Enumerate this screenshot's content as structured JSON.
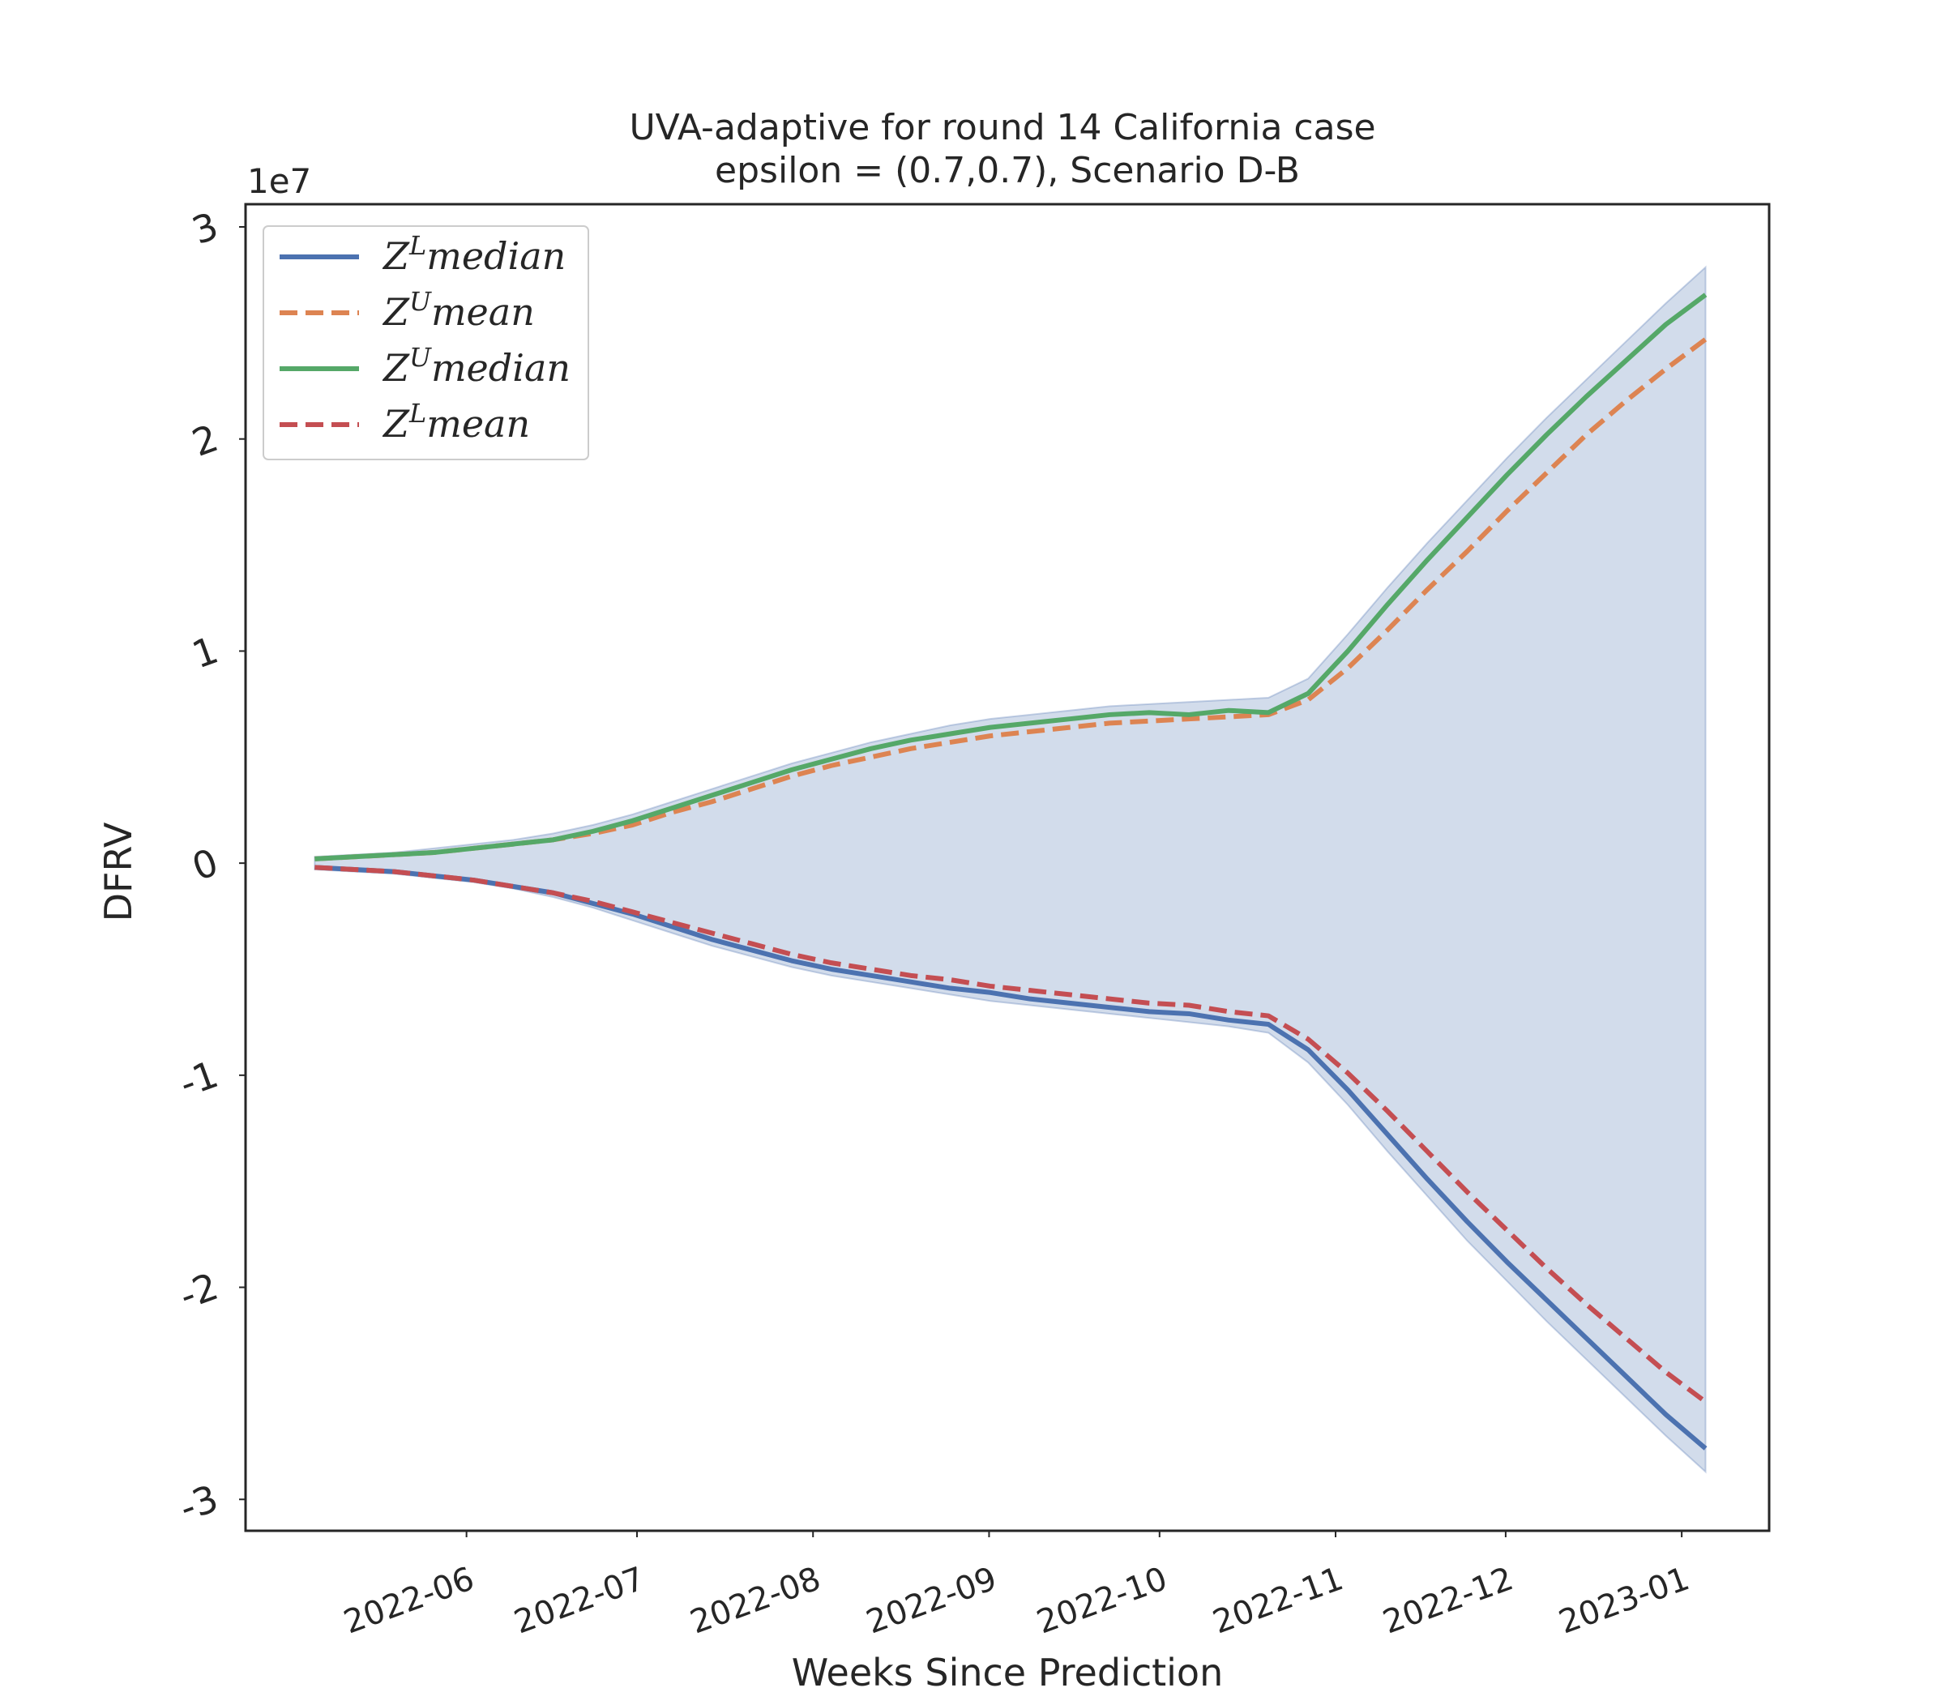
{
  "chart_data": {
    "type": "line",
    "title": "UVA-adaptive for round 14 California  case",
    "subtitle": "epsilon = (0.7,0.7), Scenario D-B",
    "x_label": "Weeks Since Prediction",
    "y_label": "DFRV",
    "y_offset_text": "1e7",
    "x": [
      0,
      1,
      2,
      3,
      4,
      5,
      6,
      7,
      8,
      9,
      10,
      11,
      12,
      13,
      14,
      15,
      16,
      17,
      18,
      19,
      20,
      21,
      22,
      23,
      24,
      25,
      26,
      27,
      28,
      29,
      30,
      31,
      32,
      33,
      34,
      35
    ],
    "xlim": [
      -1.74,
      36.6
    ],
    "xticks": [
      {
        "value": 3.82,
        "label": "2022-06"
      },
      {
        "value": 8.11,
        "label": "2022-07"
      },
      {
        "value": 12.54,
        "label": "2022-08"
      },
      {
        "value": 16.97,
        "label": "2022-09"
      },
      {
        "value": 21.26,
        "label": "2022-10"
      },
      {
        "value": 25.69,
        "label": "2022-11"
      },
      {
        "value": 29.97,
        "label": "2022-12"
      },
      {
        "value": 34.4,
        "label": "2023-01"
      }
    ],
    "ylim": [
      -3.148,
      3.107
    ],
    "yticks": [
      -3,
      -2,
      -1,
      0,
      1,
      2,
      3
    ],
    "grid": false,
    "legend": "upper left",
    "band": {
      "color": "#4c72b0",
      "upper": [
        0.03,
        0.04,
        0.05,
        0.07,
        0.09,
        0.11,
        0.14,
        0.18,
        0.23,
        0.29,
        0.35,
        0.41,
        0.47,
        0.52,
        0.57,
        0.61,
        0.65,
        0.68,
        0.7,
        0.72,
        0.74,
        0.75,
        0.76,
        0.77,
        0.78,
        0.87,
        1.08,
        1.3,
        1.51,
        1.71,
        1.91,
        2.1,
        2.28,
        2.46,
        2.64,
        2.81
      ],
      "lower": [
        -0.03,
        -0.04,
        -0.05,
        -0.07,
        -0.09,
        -0.12,
        -0.16,
        -0.21,
        -0.27,
        -0.33,
        -0.39,
        -0.44,
        -0.49,
        -0.53,
        -0.56,
        -0.59,
        -0.62,
        -0.65,
        -0.67,
        -0.69,
        -0.71,
        -0.73,
        -0.75,
        -0.77,
        -0.8,
        -0.94,
        -1.14,
        -1.36,
        -1.57,
        -1.78,
        -1.97,
        -2.16,
        -2.34,
        -2.52,
        -2.7,
        -2.87
      ]
    },
    "series": [
      {
        "name": "Z^Lmedian",
        "color": "#4c72b0",
        "dashed": false,
        "values": [
          -0.02,
          -0.03,
          -0.04,
          -0.06,
          -0.08,
          -0.11,
          -0.14,
          -0.19,
          -0.24,
          -0.3,
          -0.36,
          -0.41,
          -0.46,
          -0.5,
          -0.53,
          -0.56,
          -0.59,
          -0.61,
          -0.64,
          -0.66,
          -0.68,
          -0.7,
          -0.71,
          -0.74,
          -0.76,
          -0.88,
          -1.07,
          -1.28,
          -1.49,
          -1.69,
          -1.88,
          -2.06,
          -2.24,
          -2.42,
          -2.6,
          -2.76
        ]
      },
      {
        "name": "Z^Umean",
        "color": "#dd8452",
        "dashed": true,
        "values": [
          0.02,
          0.03,
          0.04,
          0.05,
          0.07,
          0.09,
          0.11,
          0.14,
          0.18,
          0.24,
          0.29,
          0.35,
          0.41,
          0.46,
          0.5,
          0.54,
          0.57,
          0.6,
          0.62,
          0.64,
          0.66,
          0.67,
          0.68,
          0.69,
          0.7,
          0.77,
          0.92,
          1.1,
          1.29,
          1.47,
          1.66,
          1.84,
          2.02,
          2.18,
          2.33,
          2.47
        ]
      },
      {
        "name": "Z^Umedian",
        "color": "#55a868",
        "dashed": false,
        "values": [
          0.02,
          0.03,
          0.04,
          0.05,
          0.07,
          0.09,
          0.11,
          0.15,
          0.2,
          0.26,
          0.32,
          0.38,
          0.44,
          0.49,
          0.54,
          0.58,
          0.61,
          0.64,
          0.66,
          0.68,
          0.7,
          0.71,
          0.7,
          0.72,
          0.71,
          0.8,
          1.0,
          1.22,
          1.43,
          1.63,
          1.83,
          2.02,
          2.2,
          2.37,
          2.54,
          2.68
        ]
      },
      {
        "name": "Z^Lmean",
        "color": "#c44e52",
        "dashed": true,
        "values": [
          -0.02,
          -0.03,
          -0.04,
          -0.06,
          -0.08,
          -0.11,
          -0.14,
          -0.18,
          -0.23,
          -0.28,
          -0.33,
          -0.38,
          -0.43,
          -0.47,
          -0.5,
          -0.53,
          -0.55,
          -0.58,
          -0.6,
          -0.62,
          -0.64,
          -0.66,
          -0.67,
          -0.7,
          -0.72,
          -0.83,
          -0.99,
          -1.17,
          -1.36,
          -1.55,
          -1.73,
          -1.91,
          -2.08,
          -2.24,
          -2.4,
          -2.54
        ]
      }
    ]
  }
}
